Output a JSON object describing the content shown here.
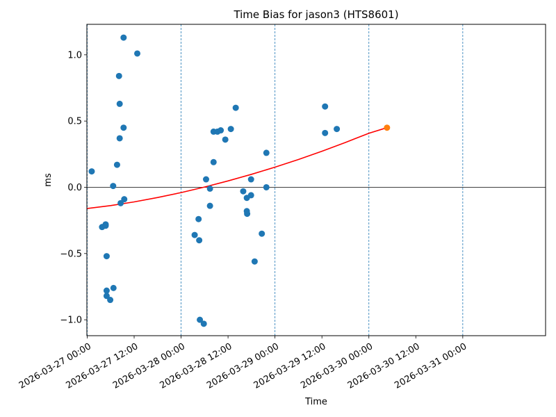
{
  "chart_data": {
    "type": "scatter",
    "title": "Time Bias for jason3 (HTS8601)",
    "xlabel": "Time",
    "ylabel": "ms",
    "x_axis": {
      "kind": "date",
      "range": [
        "2026-03-26T23:55:00",
        "2026-03-31T21:10:00"
      ],
      "ticks": [
        "2026-03-27 00:00",
        "2026-03-27 12:00",
        "2026-03-28 00:00",
        "2026-03-28 12:00",
        "2026-03-29 00:00",
        "2026-03-29 12:00",
        "2026-03-30 00:00",
        "2026-03-30 12:00",
        "2026-03-31 00:00"
      ],
      "gridlines": [
        "2026-03-27 00:00",
        "2026-03-28 00:00",
        "2026-03-29 00:00",
        "2026-03-30 00:00",
        "2026-03-31 00:00"
      ],
      "gridline_style": "dashed"
    },
    "y_axis": {
      "range": [
        -1.12,
        1.23
      ],
      "ticks": [
        -1.0,
        -0.5,
        0.0,
        0.5,
        1.0
      ],
      "tick_labels": [
        "−1.0",
        "−0.5",
        "0.0",
        "0.5",
        "1.0"
      ],
      "zero_line": true
    },
    "grid": false,
    "series": [
      {
        "type": "scatter",
        "color": "#1f77b4",
        "points": [
          [
            "2026-03-27T01:09:00",
            0.12
          ],
          [
            "2026-03-27T03:48:00",
            -0.3
          ],
          [
            "2026-03-27T04:43:00",
            -0.28
          ],
          [
            "2026-03-27T04:43:00",
            -0.29
          ],
          [
            "2026-03-27T04:58:00",
            -0.52
          ],
          [
            "2026-03-27T04:58:00",
            -0.78
          ],
          [
            "2026-03-27T04:58:00",
            -0.82
          ],
          [
            "2026-03-27T05:53:00",
            -0.85
          ],
          [
            "2026-03-27T06:38:00",
            0.01
          ],
          [
            "2026-03-27T06:43:00",
            -0.76
          ],
          [
            "2026-03-27T07:38:00",
            0.17
          ],
          [
            "2026-03-27T08:08:00",
            0.84
          ],
          [
            "2026-03-27T08:18:00",
            0.63
          ],
          [
            "2026-03-27T08:18:00",
            0.37
          ],
          [
            "2026-03-27T08:33:00",
            -0.12
          ],
          [
            "2026-03-27T09:18:00",
            1.13
          ],
          [
            "2026-03-27T09:18:00",
            0.45
          ],
          [
            "2026-03-27T09:28:00",
            -0.09
          ],
          [
            "2026-03-27T12:48:00",
            1.01
          ],
          [
            "2026-03-28T03:28:00",
            -0.36
          ],
          [
            "2026-03-28T04:28:00",
            -0.24
          ],
          [
            "2026-03-28T04:38:00",
            -0.4
          ],
          [
            "2026-03-28T04:48:00",
            -1.0
          ],
          [
            "2026-03-28T05:48:00",
            -1.03
          ],
          [
            "2026-03-28T06:23:00",
            0.06
          ],
          [
            "2026-03-28T07:23:00",
            -0.01
          ],
          [
            "2026-03-28T07:23:00",
            -0.14
          ],
          [
            "2026-03-28T08:18:00",
            0.42
          ],
          [
            "2026-03-28T08:18:00",
            0.19
          ],
          [
            "2026-03-28T09:18:00",
            0.42
          ],
          [
            "2026-03-28T10:08:00",
            0.43
          ],
          [
            "2026-03-28T11:18:00",
            0.36
          ],
          [
            "2026-03-28T12:43:00",
            0.44
          ],
          [
            "2026-03-28T13:58:00",
            0.6
          ],
          [
            "2026-03-28T15:53:00",
            -0.03
          ],
          [
            "2026-03-28T16:48:00",
            -0.08
          ],
          [
            "2026-03-28T16:48:00",
            -0.18
          ],
          [
            "2026-03-28T16:53:00",
            -0.2
          ],
          [
            "2026-03-28T17:53:00",
            0.06
          ],
          [
            "2026-03-28T17:53:00",
            -0.06
          ],
          [
            "2026-03-28T18:48:00",
            -0.56
          ],
          [
            "2026-03-28T20:38:00",
            -0.35
          ],
          [
            "2026-03-28T21:48:00",
            0.26
          ],
          [
            "2026-03-28T21:48:00",
            0.0
          ],
          [
            "2026-03-29T12:48:00",
            0.61
          ],
          [
            "2026-03-29T12:48:00",
            0.41
          ],
          [
            "2026-03-29T15:48:00",
            0.44
          ]
        ]
      },
      {
        "type": "line",
        "color": "#ff0000",
        "curve": "quadratic",
        "points": [
          [
            "2026-03-27T00:00:00",
            -0.16
          ],
          [
            "2026-03-27T06:00:00",
            -0.138
          ],
          [
            "2026-03-27T12:00:00",
            -0.11
          ],
          [
            "2026-03-27T18:00:00",
            -0.077
          ],
          [
            "2026-03-28T00:00:00",
            -0.04
          ],
          [
            "2026-03-28T06:00:00",
            0.002
          ],
          [
            "2026-03-28T12:00:00",
            0.048
          ],
          [
            "2026-03-28T18:00:00",
            0.098
          ],
          [
            "2026-03-29T00:00:00",
            0.152
          ],
          [
            "2026-03-29T06:00:00",
            0.21
          ],
          [
            "2026-03-29T12:00:00",
            0.272
          ],
          [
            "2026-03-29T18:00:00",
            0.338
          ],
          [
            "2026-03-30T00:00:00",
            0.408
          ],
          [
            "2026-03-30T04:38:00",
            0.45
          ]
        ]
      },
      {
        "type": "scatter",
        "color": "#ff7f0e",
        "points": [
          [
            "2026-03-30T04:38:00",
            0.45
          ]
        ]
      }
    ]
  }
}
